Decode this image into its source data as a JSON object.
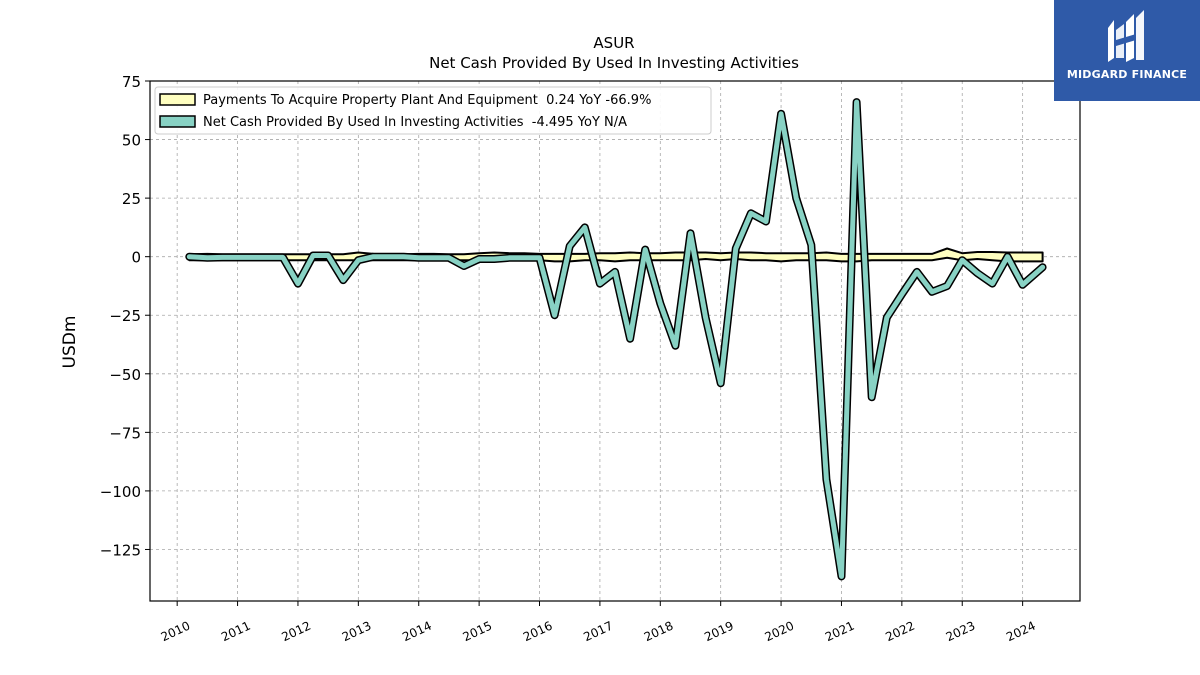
{
  "brand": {
    "name": "MIDGARD FINANCE",
    "color": "#2f5aa8"
  },
  "chart_data": {
    "type": "line",
    "title": "ASUR",
    "subtitle": "Net Cash Provided By Used In Investing Activities",
    "ylabel": "USDm",
    "xlabel": "",
    "ylim": [
      -147,
      75
    ],
    "xlim": [
      2009.55,
      2024.95
    ],
    "yticks": [
      75,
      50,
      25,
      0,
      -25,
      -50,
      -75,
      -100,
      -125
    ],
    "ytick_labels": [
      "75",
      "50",
      "25",
      "0",
      "−25",
      "−50",
      "−75",
      "−100",
      "−125"
    ],
    "xticks": [
      2010,
      2011,
      2012,
      2013,
      2014,
      2015,
      2016,
      2017,
      2018,
      2019,
      2020,
      2021,
      2022,
      2023,
      2024
    ],
    "xtick_labels": [
      "2010",
      "2011",
      "2012",
      "2013",
      "2014",
      "2015",
      "2016",
      "2017",
      "2018",
      "2019",
      "2020",
      "2021",
      "2022",
      "2023",
      "2024"
    ],
    "grid": true,
    "legend_position": "top-left",
    "series": [
      {
        "name": "Payments To Acquire Property Plant And Equipment  0.24 YoY -66.9%",
        "color": "#ffffc0",
        "style": "band",
        "x": [
          2010.2,
          2010.5,
          2010.75,
          2011.0,
          2011.25,
          2011.5,
          2011.75,
          2012.0,
          2012.25,
          2012.5,
          2012.75,
          2013.0,
          2013.25,
          2013.5,
          2013.75,
          2014.0,
          2014.25,
          2014.5,
          2014.75,
          2015.0,
          2015.25,
          2015.5,
          2015.75,
          2016.0,
          2016.25,
          2016.5,
          2016.75,
          2017.0,
          2017.25,
          2017.5,
          2017.75,
          2018.0,
          2018.25,
          2018.5,
          2018.75,
          2019.0,
          2019.25,
          2019.5,
          2019.75,
          2020.0,
          2020.25,
          2020.5,
          2020.75,
          2021.0,
          2021.25,
          2021.5,
          2021.75,
          2022.0,
          2022.25,
          2022.5,
          2022.75,
          2023.0,
          2023.25,
          2023.5,
          2023.75,
          2024.0,
          2024.33
        ],
        "upper": [
          1.0,
          1.2,
          1.0,
          1.0,
          1.0,
          1.0,
          1.0,
          1.0,
          1.0,
          1.0,
          1.0,
          1.8,
          1.2,
          1.0,
          1.0,
          1.2,
          1.2,
          1.0,
          1.0,
          1.5,
          1.8,
          1.5,
          1.5,
          1.2,
          1.2,
          1.2,
          1.2,
          1.5,
          1.5,
          1.8,
          1.5,
          1.5,
          1.8,
          1.8,
          1.8,
          1.5,
          1.8,
          1.8,
          1.5,
          1.5,
          1.5,
          1.5,
          1.8,
          1.2,
          1.2,
          1.2,
          1.2,
          1.2,
          1.2,
          1.2,
          3.5,
          1.5,
          2.0,
          2.0,
          1.8,
          1.8,
          1.8
        ],
        "lower": [
          -1.5,
          -1.5,
          -1.5,
          -1.5,
          -1.5,
          -1.5,
          -1.5,
          -1.5,
          -1.5,
          -1.5,
          -1.5,
          -1.5,
          -1.5,
          -1.5,
          -1.5,
          -1.5,
          -1.5,
          -1.5,
          -1.5,
          -1.5,
          -1.5,
          -1.5,
          -1.5,
          -1.5,
          -2.0,
          -2.0,
          -1.5,
          -1.5,
          -2.0,
          -1.5,
          -1.5,
          -1.5,
          -1.5,
          -1.5,
          -1.0,
          -1.5,
          -1.0,
          -1.5,
          -1.5,
          -2.0,
          -1.5,
          -1.5,
          -1.5,
          -2.0,
          -2.0,
          -1.5,
          -1.5,
          -1.5,
          -1.5,
          -1.5,
          -0.5,
          -1.5,
          -1.0,
          -1.5,
          -2.0,
          -2.0,
          -2.0
        ]
      },
      {
        "name": "Net Cash Provided By Used In Investing Activities  -4.495 YoY N/A",
        "color": "#88d2c4",
        "style": "line",
        "x": [
          2010.2,
          2010.5,
          2010.75,
          2011.0,
          2011.25,
          2011.5,
          2011.75,
          2012.0,
          2012.25,
          2012.5,
          2012.75,
          2013.0,
          2013.25,
          2013.5,
          2013.75,
          2014.0,
          2014.25,
          2014.5,
          2014.75,
          2015.0,
          2015.25,
          2015.5,
          2015.75,
          2016.0,
          2016.25,
          2016.5,
          2016.75,
          2017.0,
          2017.25,
          2017.5,
          2017.75,
          2018.0,
          2018.25,
          2018.5,
          2018.75,
          2019.0,
          2019.25,
          2019.5,
          2019.75,
          2020.0,
          2020.25,
          2020.5,
          2020.75,
          2021.0,
          2021.25,
          2021.5,
          2021.75,
          2022.0,
          2022.25,
          2022.5,
          2022.75,
          2023.0,
          2023.25,
          2023.5,
          2023.75,
          2024.0,
          2024.33
        ],
        "values": [
          0,
          -0.5,
          -0.3,
          -0.3,
          -0.3,
          -0.3,
          -0.3,
          -11.5,
          0.5,
          0.5,
          -10.0,
          -1.5,
          0,
          0,
          0,
          -0.5,
          -0.5,
          -0.5,
          -4.0,
          -1.0,
          -1.0,
          -0.5,
          -0.5,
          -0.5,
          -25.0,
          4.5,
          12.5,
          -11.5,
          -6.5,
          -35.0,
          3.0,
          -20.0,
          -38.0,
          10.0,
          -26.0,
          -54.0,
          3.5,
          18.5,
          15.0,
          61.0,
          25.0,
          5.0,
          -95.0,
          -136.5,
          66.0,
          -60.0,
          -26.0,
          -16.0,
          -6.5,
          -15.0,
          -12.5,
          -1.5,
          -7.0,
          -11.5,
          0,
          -12.0,
          -4.5
        ]
      }
    ]
  }
}
